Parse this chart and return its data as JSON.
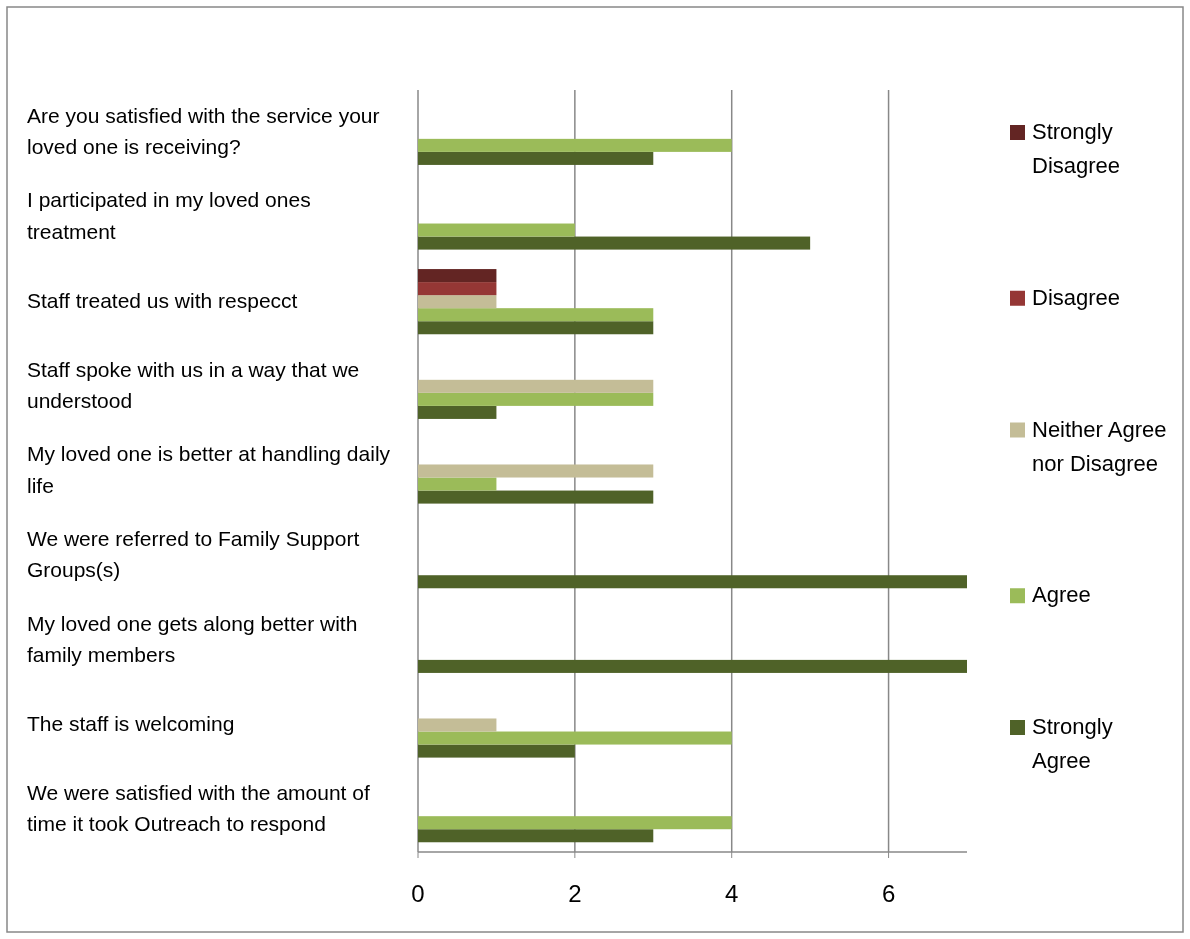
{
  "chart_data": {
    "type": "bar",
    "orientation": "horizontal",
    "categories": [
      "Are you satisfied with the service your loved one is receiving?",
      "I participated in my loved ones treatment",
      "Staff treated us with respecct",
      "Staff spoke with us in a way that we understood",
      "My loved one is better at handling daily life",
      "We were referred to Family Support Groups(s)",
      "My loved one gets along better with family members",
      "The staff is welcoming",
      "We were satisfied with the amount of time it took Outreach to respond"
    ],
    "series": [
      {
        "name": "Strongly Agree",
        "color": "#4f6228",
        "values": [
          3,
          5,
          3,
          1,
          3,
          7,
          7,
          2,
          3
        ]
      },
      {
        "name": "Agree",
        "color": "#9bbb59",
        "values": [
          4,
          2,
          3,
          3,
          1,
          0,
          0,
          4,
          4
        ]
      },
      {
        "name": "Neither Agree nor Disagree",
        "color": "#c4bd97",
        "values": [
          0,
          0,
          1,
          3,
          3,
          0,
          0,
          1,
          0
        ]
      },
      {
        "name": "Disagree",
        "color": "#953735",
        "values": [
          0,
          0,
          1,
          0,
          0,
          0,
          0,
          0,
          0
        ]
      },
      {
        "name": "Strongly Disagree",
        "color": "#632523",
        "values": [
          0,
          0,
          1,
          0,
          0,
          0,
          0,
          0,
          0
        ]
      }
    ],
    "xlim": [
      0,
      7
    ],
    "xticks": [
      0,
      2,
      4,
      6
    ],
    "grid": "x",
    "legend": "right"
  }
}
